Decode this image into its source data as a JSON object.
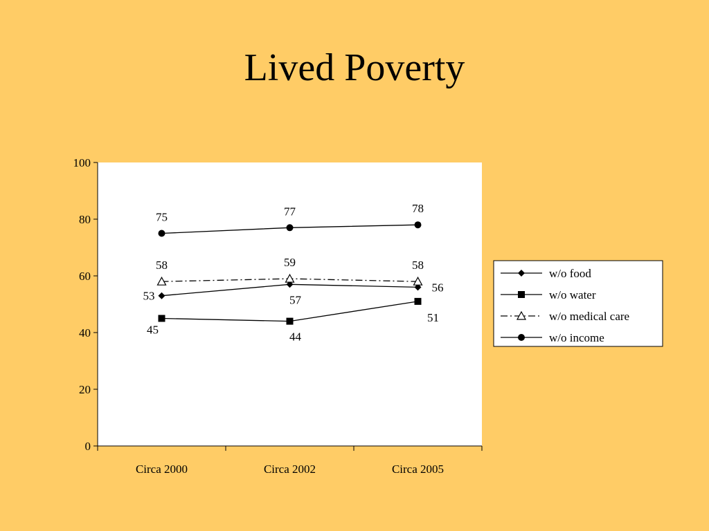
{
  "slide": {
    "title": "Lived Poverty"
  },
  "colors": {
    "background": "#FFCC66",
    "plot_area": "#FFFFFF",
    "lines": "#000000"
  },
  "chart_data": {
    "type": "line",
    "title": "",
    "xlabel": "",
    "ylabel": "",
    "categories": [
      "Circa 2000",
      "Circa 2002",
      "Circa 2005"
    ],
    "ylim": [
      0,
      100
    ],
    "yticks": [
      0,
      20,
      40,
      60,
      80,
      100
    ],
    "grid": false,
    "legend": "right",
    "series": [
      {
        "name": "w/o food",
        "values": [
          53,
          57,
          56
        ],
        "marker": "diamond",
        "dash": "solid"
      },
      {
        "name": "w/o water",
        "values": [
          45,
          44,
          51
        ],
        "marker": "square",
        "dash": "solid"
      },
      {
        "name": "w/o medical care",
        "values": [
          58,
          59,
          58
        ],
        "marker": "triangle-open",
        "dash": "dash-dot"
      },
      {
        "name": "w/o income",
        "values": [
          75,
          77,
          78
        ],
        "marker": "circle",
        "dash": "solid"
      }
    ]
  }
}
